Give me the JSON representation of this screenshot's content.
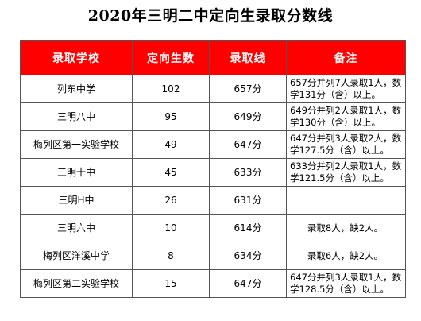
{
  "title": "2020年三明二中定向生录取分数线",
  "table": {
    "headers": [
      "录取学校",
      "定向生数",
      "录取线",
      "备注"
    ],
    "rows": [
      {
        "school": "列东中学",
        "count": "102",
        "score": "657分",
        "note": "657分并列7人录取1人，数学131分（含）以上。"
      },
      {
        "school": "三明八中",
        "count": "95",
        "score": "649分",
        "note": "649分并列2人录取1人，数学130分（含）以上。"
      },
      {
        "school": "梅列区第一实验学校",
        "count": "49",
        "score": "647分",
        "note": "647分并列3人录取2人，数学127.5分（含）以上。"
      },
      {
        "school": "三明十中",
        "count": "45",
        "score": "633分",
        "note": "633分并列2人录取1人，数学121.5分（含）以上。"
      },
      {
        "school": "三明H中",
        "count": "26",
        "score": "631分",
        "note": ""
      },
      {
        "school": "三明六中",
        "count": "10",
        "score": "614分",
        "note": "录取8人，缺2人。"
      },
      {
        "school": "梅列区洋溪中学",
        "count": "8",
        "score": "634分",
        "note": "录取6人，缺2人。"
      },
      {
        "school": "梅列区第二实验学校",
        "count": "15",
        "score": "647分",
        "note": "647分并列3人录取1人，数学128.5分（含）以上。"
      }
    ]
  },
  "colors": {
    "header_bg": "#ff0000",
    "header_text": "#ffffff",
    "border": "#555555"
  }
}
